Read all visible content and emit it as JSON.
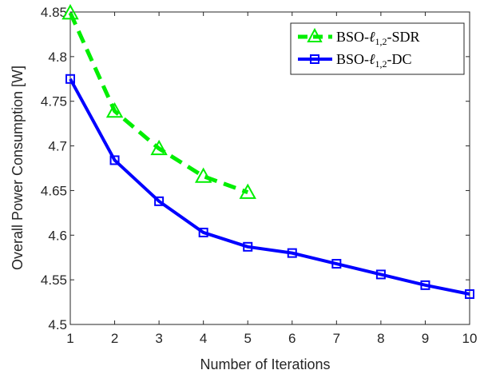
{
  "chart_data": {
    "type": "line",
    "xlabel": "Number of Iterations",
    "ylabel": "Overall Power Consumption [W]",
    "xlim": [
      1,
      10
    ],
    "ylim": [
      4.5,
      4.85
    ],
    "xticks": [
      1,
      2,
      3,
      4,
      5,
      6,
      7,
      8,
      9,
      10
    ],
    "yticks": [
      4.5,
      4.55,
      4.6,
      4.65,
      4.7,
      4.75,
      4.8,
      4.85
    ],
    "grid": false,
    "legend_position": "top-right",
    "series": [
      {
        "name": "BSO-ℓ1,2-SDR",
        "legend": {
          "main": "BSO-",
          "ell": "ℓ",
          "sub": "1,2",
          "suffix": "-SDR"
        },
        "color": "#00ee00",
        "line_style": "dashed",
        "marker": "triangle",
        "x": [
          1,
          2,
          3,
          4,
          5
        ],
        "values": [
          4.849,
          4.739,
          4.697,
          4.666,
          4.648
        ]
      },
      {
        "name": "BSO-ℓ1,2-DC",
        "legend": {
          "main": "BSO-",
          "ell": "ℓ",
          "sub": "1,2",
          "suffix": "-DC"
        },
        "color": "#0000ff",
        "line_style": "solid",
        "marker": "square",
        "x": [
          1,
          2,
          3,
          4,
          5,
          6,
          7,
          8,
          9,
          10
        ],
        "values": [
          4.775,
          4.684,
          4.638,
          4.603,
          4.587,
          4.58,
          4.568,
          4.556,
          4.544,
          4.534
        ]
      }
    ]
  }
}
